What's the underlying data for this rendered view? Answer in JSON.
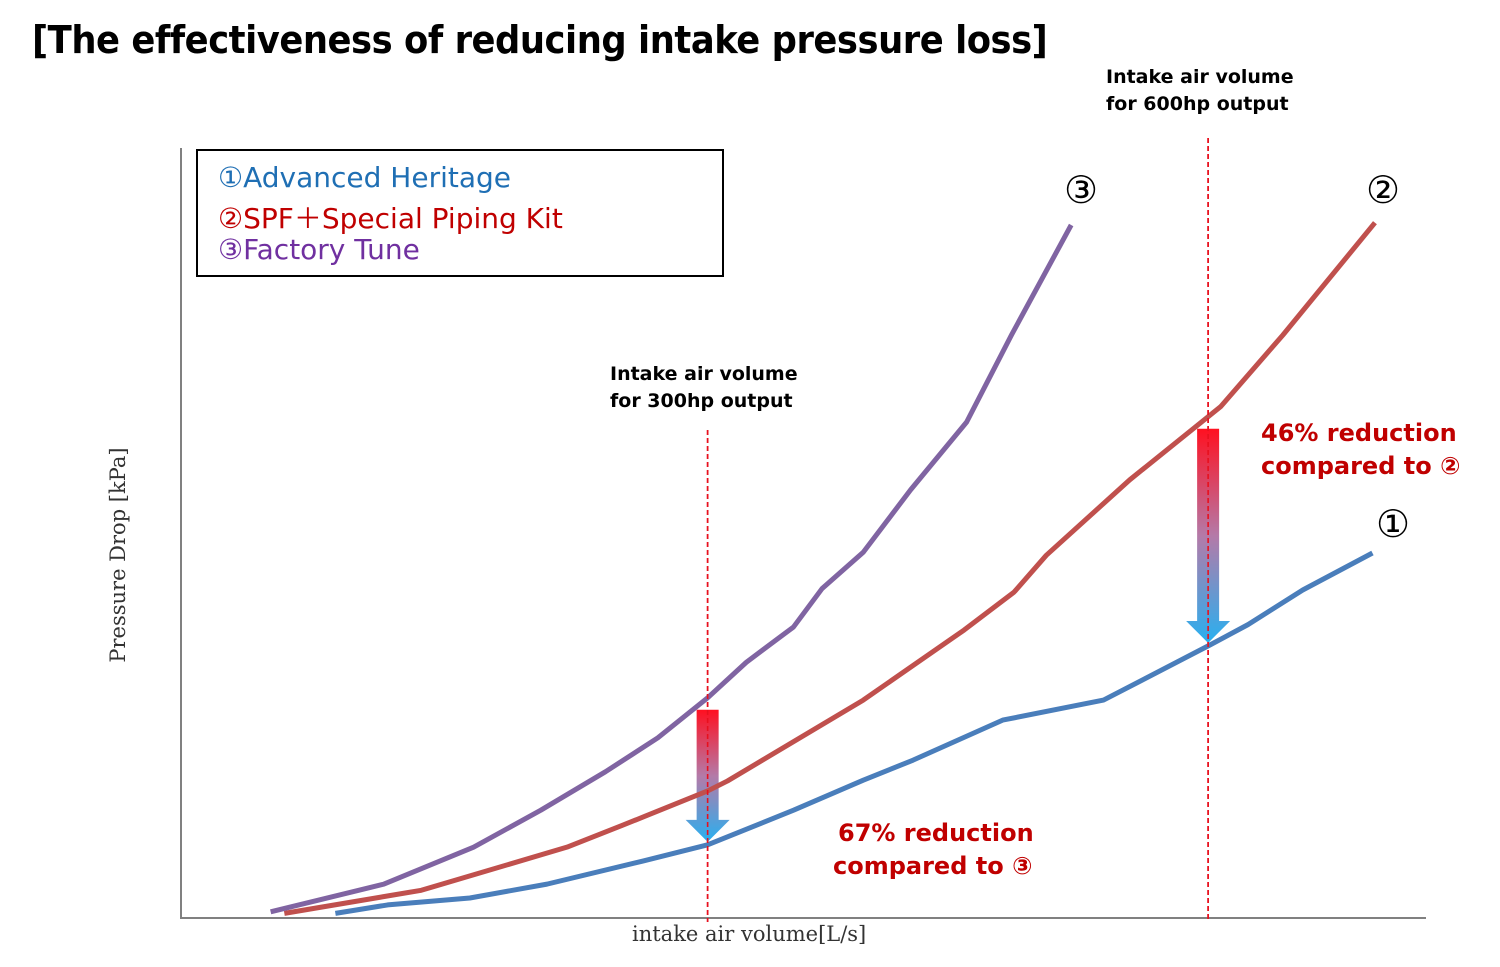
{
  "title": "[The effectiveness of reducing intake pressure loss]",
  "chart_data": {
    "type": "line",
    "title": "[The effectiveness of reducing intake pressure loss]",
    "xlabel": "intake air volume[L/s]",
    "ylabel": "Pressure Drop [kPa]",
    "xlim": [
      0,
      100
    ],
    "ylim": [
      0,
      100
    ],
    "ticks_shown": false,
    "grid": false,
    "legend_position": "top-left",
    "legend": [
      "①Advanced Heritage",
      "②SPF＋Special Piping Kit",
      "③Factory Tune"
    ],
    "series": [
      {
        "name": "①Advanced Heritage",
        "color": "#4a7ebb",
        "label_color": "#1f6fb4",
        "marker_label": "①",
        "points": [
          [
            12.4,
            0.6
          ],
          [
            16.6,
            1.7
          ],
          [
            23.2,
            2.6
          ],
          [
            29.4,
            4.4
          ],
          [
            37.1,
            7.4
          ],
          [
            42.3,
            9.5
          ],
          [
            49.2,
            14.0
          ],
          [
            54.8,
            17.9
          ],
          [
            58.8,
            20.5
          ],
          [
            66.0,
            25.7
          ],
          [
            74.1,
            28.3
          ],
          [
            82.7,
            35.5
          ],
          [
            85.7,
            38.1
          ],
          [
            90.1,
            42.6
          ],
          [
            95.7,
            47.4
          ]
        ]
      },
      {
        "name": "②SPF＋Special Piping Kit",
        "color": "#c0504d",
        "label_color": "#c00000",
        "marker_label": "②",
        "points": [
          [
            8.3,
            0.6
          ],
          [
            19.3,
            3.6
          ],
          [
            31.0,
            9.2
          ],
          [
            35.4,
            12.0
          ],
          [
            37.4,
            13.3
          ],
          [
            42.3,
            16.5
          ],
          [
            43.9,
            17.8
          ],
          [
            54.8,
            28.3
          ],
          [
            62.9,
            37.4
          ],
          [
            66.9,
            42.3
          ],
          [
            69.5,
            47.1
          ],
          [
            76.2,
            56.9
          ],
          [
            83.5,
            66.4
          ],
          [
            88.5,
            75.7
          ],
          [
            95.9,
            90.3
          ]
        ]
      },
      {
        "name": "③Factory Tune",
        "color": "#8064a2",
        "label_color": "#7030a0",
        "marker_label": "③",
        "points": [
          [
            7.2,
            0.8
          ],
          [
            16.3,
            4.4
          ],
          [
            23.5,
            9.2
          ],
          [
            28.9,
            14.0
          ],
          [
            34.1,
            19.0
          ],
          [
            38.3,
            23.4
          ],
          [
            42.3,
            28.6
          ],
          [
            45.4,
            33.2
          ],
          [
            49.2,
            37.8
          ],
          [
            51.5,
            42.8
          ],
          [
            54.8,
            47.5
          ],
          [
            58.6,
            55.6
          ],
          [
            63.1,
            64.4
          ],
          [
            66.7,
            75.7
          ],
          [
            71.5,
            90.0
          ]
        ]
      }
    ],
    "annotations": [
      {
        "type": "vline",
        "x": 42.3,
        "label": "Intake air volume\nfor 300hp output",
        "label_lines": [
          "Intake air volume",
          "for 300hp output"
        ]
      },
      {
        "type": "vline",
        "x": 82.5,
        "label": "Intake air volume\nfor 600hp output",
        "label_lines": [
          "Intake air volume",
          "for 600hp output"
        ]
      },
      {
        "type": "arrow",
        "x": 42.3,
        "from_series": "③Factory Tune",
        "to_series": "①Advanced Heritage",
        "text_lines": [
          "67% reduction",
          "compared to ③"
        ]
      },
      {
        "type": "arrow",
        "x": 82.5,
        "from_series": "②SPF＋Special Piping Kit",
        "to_series": "①Advanced Heritage",
        "text_lines": [
          "46% reduction",
          "compared to ②"
        ]
      }
    ]
  }
}
